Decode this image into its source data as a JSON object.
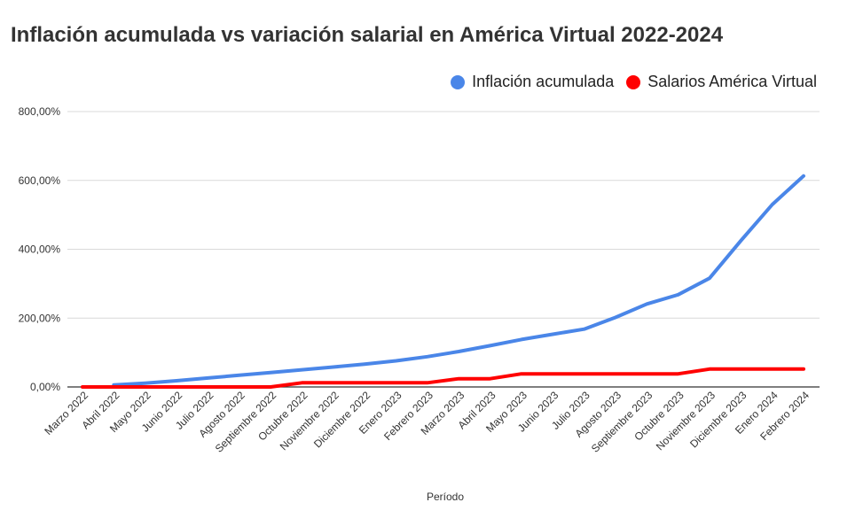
{
  "chart_data": {
    "type": "line",
    "title": "Inflación acumulada vs variación salarial en América Virtual 2022-2024",
    "xlabel": "Período",
    "ylabel": "",
    "ylim": [
      0,
      800
    ],
    "yticks": [
      "0,00%",
      "200,00%",
      "400,00%",
      "600,00%",
      "800,00%"
    ],
    "ytick_values": [
      0,
      200,
      400,
      600,
      800
    ],
    "grid": true,
    "legend_position": "top-right",
    "categories": [
      "Marzo 2022",
      "Abril 2022",
      "Mayo 2022",
      "Junio 2022",
      "Julio 2022",
      "Agosto 2022",
      "Septiembre 2022",
      "Octubre 2022",
      "Noviembre 2022",
      "Diciembre 2022",
      "Enero 2023",
      "Febrero 2023",
      "Marzo 2023",
      "Abril 2023",
      "Mayo 2023",
      "Junio 2023",
      "Julio 2023",
      "Agosto 2023",
      "Septiembre 2023",
      "Octubre 2023",
      "Noviembre 2023",
      "Diciembre 2023",
      "Enero 2024",
      "Febrero 2024"
    ],
    "series": [
      {
        "name": "Inflación acumulada",
        "color": "#4a86e8",
        "values": [
          null,
          6,
          11,
          18,
          26,
          34,
          42,
          50,
          58,
          66,
          76,
          88,
          103,
          120,
          138,
          153,
          168,
          202,
          241,
          268,
          316,
          425,
          530,
          613
        ]
      },
      {
        "name": "Salarios América Virtual",
        "color": "#ff0000",
        "values": [
          0,
          0,
          0,
          0,
          0,
          0,
          0,
          12,
          12,
          12,
          12,
          12,
          24,
          24,
          38,
          38,
          38,
          38,
          38,
          38,
          52,
          52,
          52,
          52
        ]
      }
    ]
  }
}
